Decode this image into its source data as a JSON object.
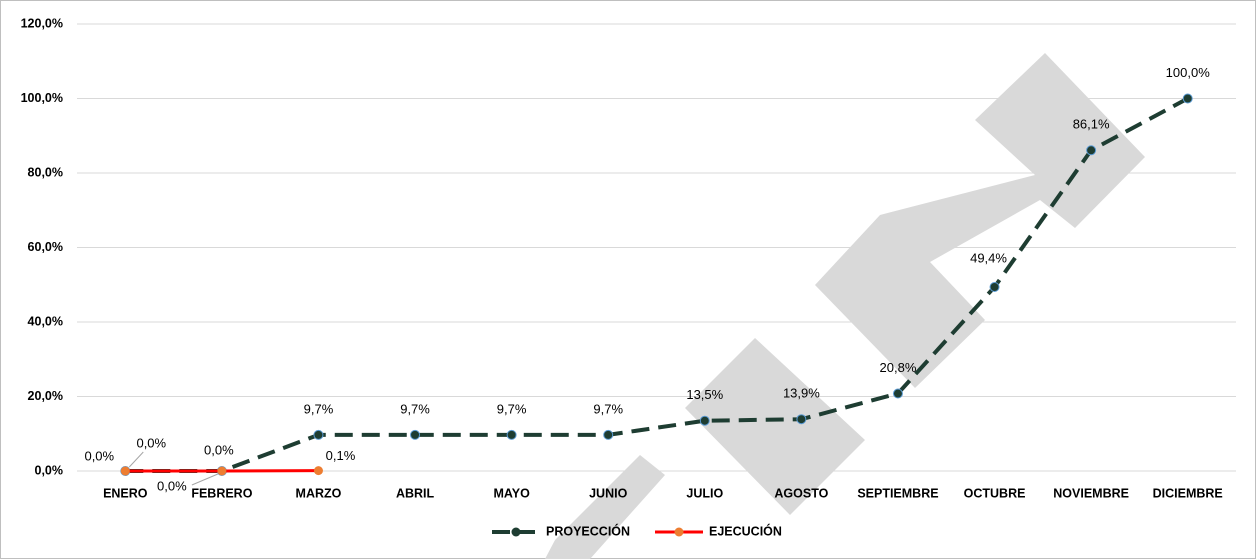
{
  "chart_data": {
    "type": "line",
    "categories": [
      "ENERO",
      "FEBRERO",
      "MARZO",
      "ABRIL",
      "MAYO",
      "JUNIO",
      "JULIO",
      "AGOSTO",
      "SEPTIEMBRE",
      "OCTUBRE",
      "NOVIEMBRE",
      "DICIEMBRE"
    ],
    "series": [
      {
        "name": "PROYECCIÓN",
        "color": "#1e3d32",
        "dashed": true,
        "values": [
          0.0,
          0.0,
          9.7,
          9.7,
          9.7,
          9.7,
          13.5,
          13.9,
          20.8,
          49.4,
          86.1,
          100.0
        ],
        "value_labels": [
          "0,0%",
          "0,0%",
          "9,7%",
          "9,7%",
          "9,7%",
          "9,7%",
          "13,5%",
          "13,9%",
          "20,8%",
          "49,4%",
          "86,1%",
          "100,0%"
        ]
      },
      {
        "name": "EJECUCIÓN",
        "color": "#ff0000",
        "marker_color": "#ed7d31",
        "dashed": false,
        "values": [
          0.0,
          0.0,
          0.1,
          null,
          null,
          null,
          null,
          null,
          null,
          null,
          null,
          null
        ],
        "value_labels": [
          "0,0%",
          "0,0%",
          "0,1%",
          null,
          null,
          null,
          null,
          null,
          null,
          null,
          null,
          null
        ]
      }
    ],
    "ylim": [
      0,
      120
    ],
    "yticks": [
      {
        "value": 0,
        "label": "0,0%"
      },
      {
        "value": 20,
        "label": "20,0%"
      },
      {
        "value": 40,
        "label": "40,0%"
      },
      {
        "value": 60,
        "label": "60,0%"
      },
      {
        "value": 80,
        "label": "80,0%"
      },
      {
        "value": 100,
        "label": "100,0%"
      },
      {
        "value": 120,
        "label": "120,0%"
      }
    ],
    "grid": true,
    "legend": "bottom"
  }
}
